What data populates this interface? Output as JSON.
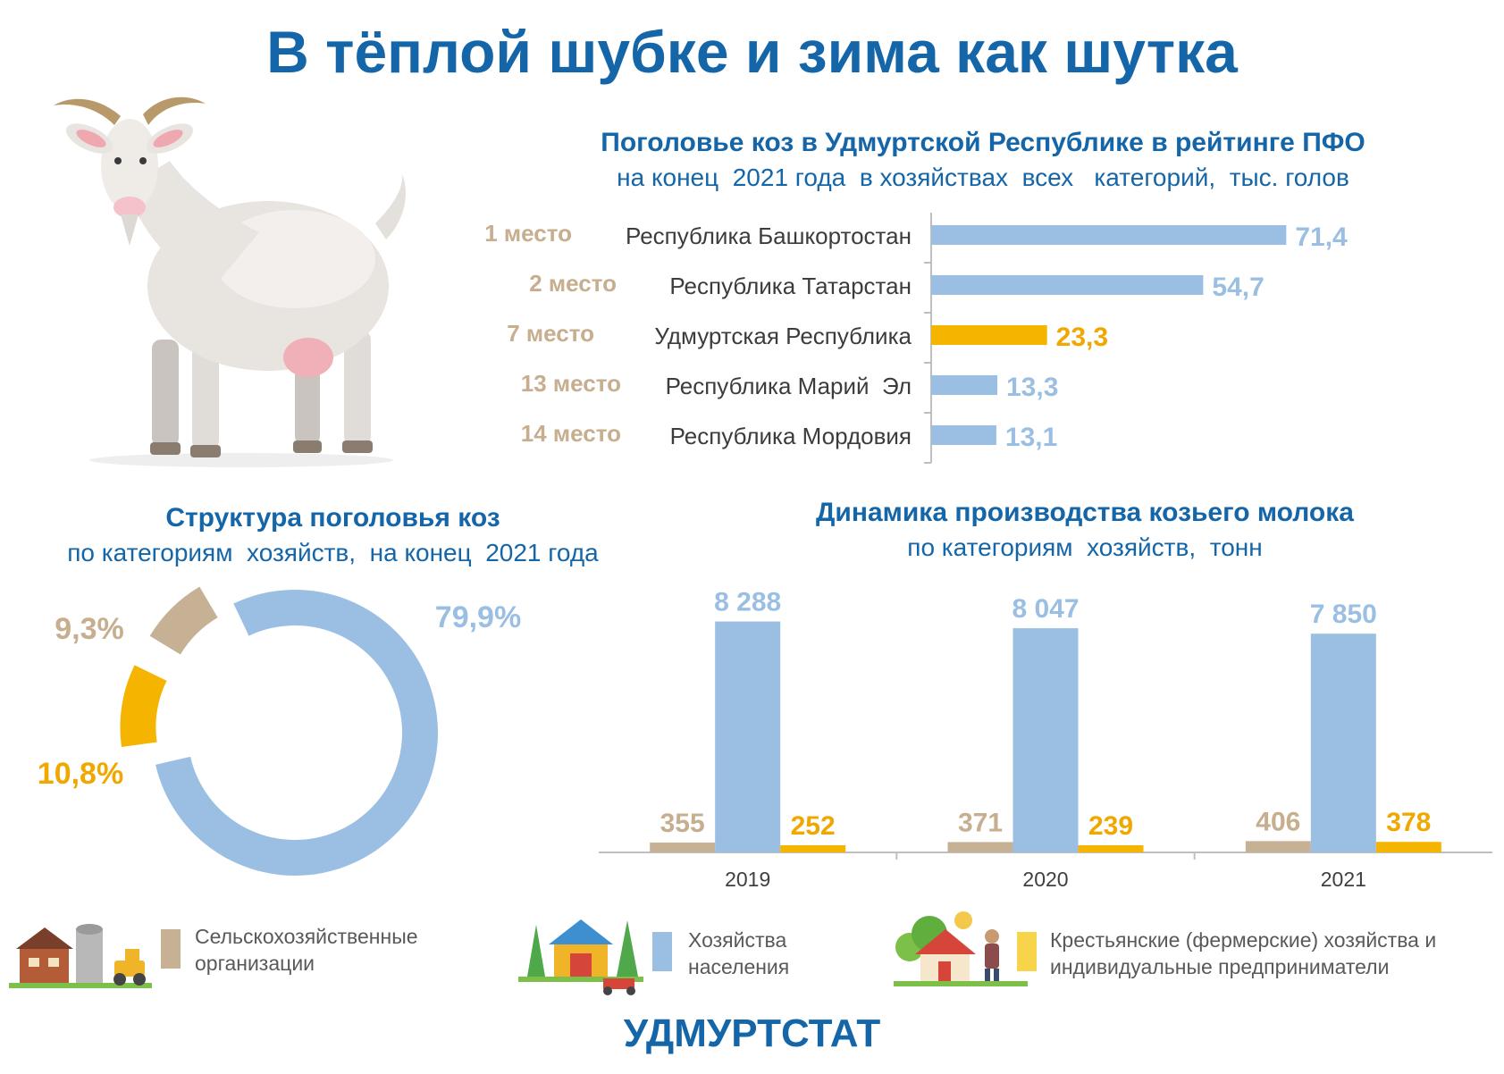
{
  "title": "В тёплой шубке и зима как шутка",
  "colors": {
    "blue": "#9bbfe3",
    "gold": "#f4b400",
    "tan": "#c6b195",
    "title_blue": "#1466a8"
  },
  "ranking": {
    "title": "Поголовье коз в Удмуртской Республике в рейтинге ПФО",
    "subtitle": "на конец  2021 года  в хозяйствах  всех   категорий,  тыс. голов"
  },
  "structure": {
    "title": "Структура поголовья коз",
    "subtitle": "по категориям  хозяйств,  на конец  2021 года"
  },
  "milk": {
    "title": "Динамика производства козьего молока",
    "subtitle": "по категориям  хозяйств,  тонн"
  },
  "legend": [
    {
      "label": "Сельскохозяйственные организации",
      "color": "#c6b195",
      "icon": "farm-buildings-icon"
    },
    {
      "label": "Хозяйства населения",
      "color": "#9bbfe3",
      "icon": "household-barn-icon"
    },
    {
      "label": "Крестьянские (фермерские) хозяйства и индивидуальные предприниматели",
      "color": "#f7d44a",
      "icon": "farmer-house-icon"
    }
  ],
  "footer": "УДМУРТСТАТ",
  "chart_data": [
    {
      "type": "bar",
      "orientation": "horizontal",
      "ranks": [
        "1 место",
        "2 место",
        "7 место",
        "13 место",
        "14 место"
      ],
      "categories": [
        "Республика Башкортостан",
        "Республика Татарстан",
        "Удмуртская Республика",
        "Республика Марий  Эл",
        "Республика Мордовия"
      ],
      "values": [
        71.4,
        54.7,
        23.3,
        13.3,
        13.1
      ],
      "labels": [
        "71,4",
        "54,7",
        "23,3",
        "13,3",
        "13,1"
      ],
      "highlight": "Удмуртская Республика",
      "xlim": [
        0,
        80
      ]
    },
    {
      "type": "pie",
      "style": "donut",
      "slices": [
        {
          "category": "Хозяйства населения",
          "value": 79.9,
          "label": "79,9%"
        },
        {
          "category": "Крестьянские (фермерские) хозяйства и индивидуальные предприниматели",
          "value": 10.8,
          "label": "10,8%"
        },
        {
          "category": "Сельскохозяйственные организации",
          "value": 9.3,
          "label": "9,3%"
        }
      ]
    },
    {
      "type": "bar",
      "categories": [
        "2019",
        "2020",
        "2021"
      ],
      "series": [
        {
          "category": "Сельскохозяйственные организации",
          "values": [
            355,
            371,
            406
          ],
          "labels": [
            "355",
            "371",
            "406"
          ]
        },
        {
          "category": "Хозяйства населения",
          "values": [
            8288,
            8047,
            7850
          ],
          "labels": [
            "8 288",
            "8 047",
            "7 850"
          ]
        },
        {
          "category": "Крестьянские (фермерские) хозяйства и индивидуальные предприниматели",
          "values": [
            252,
            239,
            378
          ],
          "labels": [
            "252",
            "239",
            "378"
          ]
        }
      ],
      "ylim": [
        0,
        9300
      ]
    }
  ]
}
